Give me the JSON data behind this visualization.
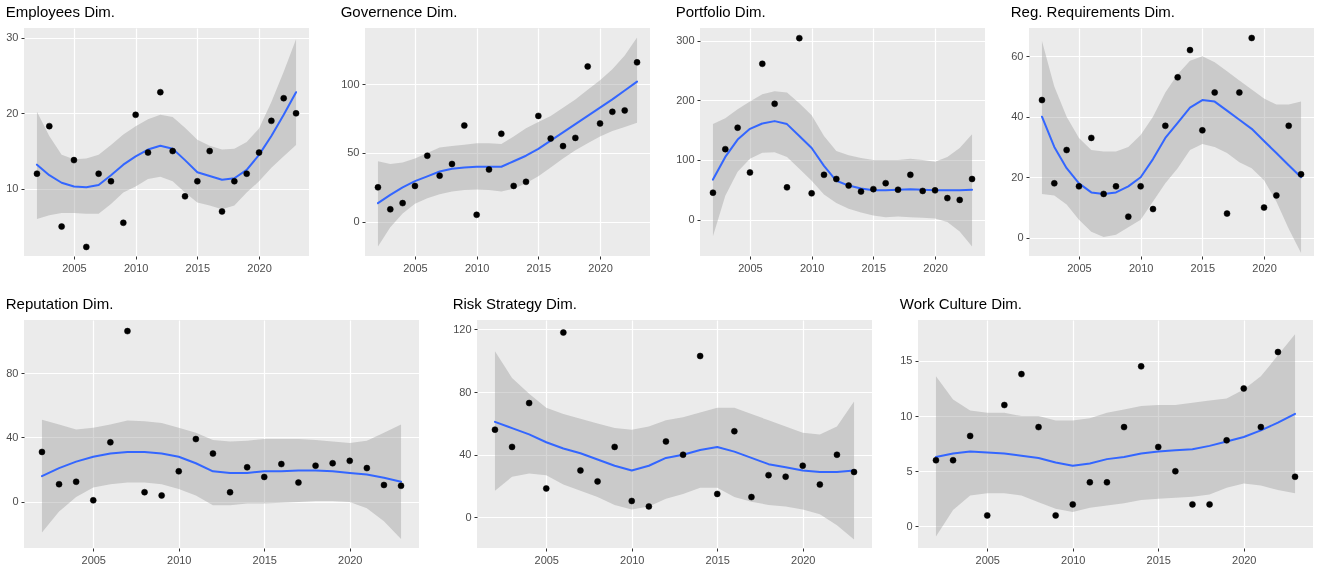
{
  "chart_data": [
    {
      "type": "scatter",
      "title": "Employees Dim.",
      "x": [
        2002,
        2003,
        2004,
        2005,
        2006,
        2007,
        2008,
        2009,
        2010,
        2011,
        2012,
        2013,
        2014,
        2015,
        2016,
        2017,
        2018,
        2019,
        2020,
        2021,
        2022,
        2023
      ],
      "xlim": [
        2000.95,
        2024.05
      ],
      "xticks": [
        2005,
        2010,
        2015,
        2020
      ],
      "ylim": [
        1.1,
        31.3
      ],
      "yticks": [
        10,
        20,
        30
      ],
      "grid": true,
      "marker": "circle",
      "series": [
        {
          "type": "scatter",
          "color": "#000000",
          "values": [
            12,
            18.3,
            5,
            13.8,
            2.3,
            12,
            11,
            5.5,
            19.8,
            14.8,
            22.8,
            15,
            9,
            11,
            15,
            7,
            11,
            12,
            14.8,
            19,
            22,
            20
          ]
        },
        {
          "type": "line",
          "color": "#3366ff",
          "marker": "none",
          "values": [
            13.2,
            11.8,
            10.8,
            10.3,
            10.2,
            10.5,
            11.8,
            13.2,
            14.3,
            15.2,
            15.7,
            15.3,
            13.8,
            12.2,
            11.7,
            11.2,
            11.4,
            12.5,
            14.5,
            17,
            19.8,
            22.8
          ],
          "lower": [
            6,
            6.5,
            6.8,
            6.8,
            6.7,
            6.7,
            8,
            9.5,
            10.3,
            11.3,
            11.6,
            11,
            9.5,
            8.2,
            7.8,
            7.3,
            7.8,
            9.5,
            11,
            12.8,
            14.3,
            15.8
          ],
          "upper": [
            20.2,
            17,
            14.5,
            13.9,
            14,
            14.5,
            15.8,
            17.2,
            18.3,
            19.2,
            19.8,
            19.5,
            18.1,
            16.5,
            15.7,
            15.2,
            15.3,
            16.2,
            18,
            21.5,
            25.5,
            29.8
          ]
        }
      ]
    },
    {
      "type": "scatter",
      "title": "Governence Dim.",
      "x": [
        2002,
        2003,
        2004,
        2005,
        2006,
        2007,
        2008,
        2009,
        2010,
        2011,
        2012,
        2013,
        2014,
        2015,
        2016,
        2017,
        2018,
        2019,
        2020,
        2021,
        2022,
        2023
      ],
      "xlim": [
        2000.95,
        2024.05
      ],
      "xticks": [
        2005,
        2010,
        2015,
        2020
      ],
      "ylim": [
        -25,
        141
      ],
      "yticks": [
        0,
        50,
        100
      ],
      "grid": true,
      "marker": "circle",
      "series": [
        {
          "type": "scatter",
          "color": "#000000",
          "values": [
            25,
            9,
            13.5,
            26,
            48,
            33.5,
            42,
            70,
            5,
            38,
            64,
            26,
            29,
            77,
            60.5,
            55,
            61,
            113,
            71.5,
            80,
            81,
            116
          ]
        },
        {
          "type": "line",
          "color": "#3366ff",
          "marker": "none",
          "values": [
            13.5,
            19.5,
            25,
            29.5,
            33,
            36.5,
            38.5,
            39.5,
            40,
            40,
            40,
            44,
            48,
            53,
            59,
            65,
            71,
            77,
            83,
            89,
            95.5,
            102
          ],
          "lower": [
            -18,
            -4,
            6,
            13,
            17,
            20,
            22,
            23,
            23.5,
            23,
            22,
            24,
            28,
            33,
            39.5,
            46,
            52,
            57,
            62,
            66,
            69,
            72
          ],
          "upper": [
            44,
            42,
            43,
            46,
            50,
            54,
            55,
            56,
            57,
            57,
            56.5,
            62,
            68,
            72.5,
            77,
            83,
            89,
            96,
            103,
            111,
            121,
            134
          ]
        }
      ]
    },
    {
      "type": "scatter",
      "title": "Portfolio Dim.",
      "x": [
        2002,
        2003,
        2004,
        2005,
        2006,
        2007,
        2008,
        2009,
        2010,
        2011,
        2012,
        2013,
        2014,
        2015,
        2016,
        2017,
        2018,
        2019,
        2020,
        2021,
        2022,
        2023
      ],
      "xlim": [
        2000.95,
        2024.05
      ],
      "xticks": [
        2005,
        2010,
        2015,
        2020
      ],
      "ylim": [
        -61,
        321
      ],
      "yticks": [
        0,
        100,
        200,
        300
      ],
      "grid": true,
      "marker": "circle",
      "series": [
        {
          "type": "scatter",
          "color": "#000000",
          "values": [
            45,
            118,
            154,
            79,
            261,
            194,
            54,
            304,
            44,
            75,
            68,
            57,
            47,
            51,
            61,
            50,
            75,
            48,
            49,
            36,
            33,
            68
          ]
        },
        {
          "type": "line",
          "color": "#3366ff",
          "marker": "none",
          "values": [
            67,
            105,
            134,
            152,
            161,
            165,
            160,
            140,
            120,
            90,
            65,
            57,
            52,
            49,
            49,
            50,
            51,
            50,
            49,
            49,
            49,
            50
          ],
          "lower": [
            -28,
            40,
            80,
            102,
            112,
            113,
            105,
            85,
            65,
            42,
            28,
            18,
            12,
            7,
            4,
            5,
            4,
            3,
            2,
            -4,
            -20,
            -45
          ],
          "upper": [
            160,
            170,
            185,
            198,
            210,
            215,
            213,
            195,
            175,
            140,
            115,
            108,
            103,
            100,
            100,
            100,
            102,
            100,
            97,
            105,
            120,
            143
          ]
        }
      ]
    },
    {
      "type": "scatter",
      "title": "Reg. Requirements Dim.",
      "x": [
        2002,
        2003,
        2004,
        2005,
        2006,
        2007,
        2008,
        2009,
        2010,
        2011,
        2012,
        2013,
        2014,
        2015,
        2016,
        2017,
        2018,
        2019,
        2020,
        2021,
        2022,
        2023
      ],
      "xlim": [
        2000.95,
        2024.05
      ],
      "xticks": [
        2005,
        2010,
        2015,
        2020
      ],
      "ylim": [
        -6,
        69.3
      ],
      "yticks": [
        0,
        20,
        40,
        60
      ],
      "grid": true,
      "marker": "circle",
      "series": [
        {
          "type": "scatter",
          "color": "#000000",
          "values": [
            45.5,
            18,
            29,
            17,
            33,
            14.5,
            17,
            7,
            17,
            9.5,
            37,
            53,
            62,
            35.5,
            48,
            8,
            48,
            66,
            10,
            14,
            37,
            21
          ]
        },
        {
          "type": "line",
          "color": "#3366ff",
          "marker": "none",
          "values": [
            40,
            30,
            23,
            18,
            15,
            14.5,
            15,
            17,
            20,
            26,
            33,
            38,
            43,
            45.5,
            45,
            42,
            39,
            36,
            32,
            28,
            24,
            20
          ],
          "lower": [
            14.5,
            14,
            11,
            6,
            2,
            0.3,
            1,
            3.5,
            6,
            12,
            18,
            23,
            29,
            31,
            30,
            28,
            25,
            23,
            19,
            12,
            3,
            -5
          ],
          "upper": [
            65,
            50,
            40,
            33,
            29,
            28.5,
            28.5,
            30,
            34,
            40,
            48,
            54,
            58.5,
            60,
            58,
            55,
            52,
            49,
            46,
            44,
            44,
            45
          ]
        }
      ]
    },
    {
      "type": "scatter",
      "title": "Reputation Dim.",
      "x": [
        2002,
        2003,
        2004,
        2005,
        2006,
        2007,
        2008,
        2009,
        2010,
        2011,
        2012,
        2013,
        2014,
        2015,
        2016,
        2017,
        2018,
        2019,
        2020,
        2021,
        2022,
        2023
      ],
      "xlim": [
        2000.95,
        2024.05
      ],
      "xticks": [
        2005,
        2010,
        2015,
        2020
      ],
      "ylim": [
        -28.6,
        112.9
      ],
      "yticks": [
        0,
        40,
        80
      ],
      "grid": true,
      "marker": "circle",
      "series": [
        {
          "type": "scatter",
          "color": "#000000",
          "values": [
            31,
            11,
            12.5,
            1,
            37,
            106,
            6,
            4,
            19,
            39,
            30,
            6,
            21.5,
            15.5,
            23.5,
            12,
            22.5,
            24,
            25.5,
            21,
            10.5,
            10
          ]
        },
        {
          "type": "line",
          "color": "#3366ff",
          "marker": "none",
          "values": [
            16,
            21,
            25,
            28,
            30,
            31,
            31,
            30,
            28,
            24,
            19,
            18,
            18,
            19,
            19,
            19.5,
            19.5,
            19,
            18,
            17,
            15,
            12.5
          ],
          "lower": [
            -19,
            -6,
            3,
            9,
            11,
            12,
            12,
            11,
            8,
            4,
            -2,
            -2,
            -1,
            -1,
            -0.5,
            0,
            0.5,
            0.5,
            0,
            -4,
            -12,
            -23
          ],
          "upper": [
            51,
            48,
            45,
            46,
            48,
            50.5,
            50,
            49,
            46,
            43,
            38.5,
            37.5,
            38,
            39,
            39,
            39,
            38.5,
            37.5,
            36.5,
            38,
            43,
            48
          ]
        }
      ]
    },
    {
      "type": "scatter",
      "title": "Risk Strategy Dim.",
      "x": [
        2002,
        2003,
        2004,
        2005,
        2006,
        2007,
        2008,
        2009,
        2010,
        2011,
        2012,
        2013,
        2014,
        2015,
        2016,
        2017,
        2018,
        2019,
        2020,
        2021,
        2022,
        2023
      ],
      "xlim": [
        2000.95,
        2024.05
      ],
      "xticks": [
        2005,
        2010,
        2015,
        2020
      ],
      "ylim": [
        -19.5,
        126
      ],
      "yticks": [
        0,
        40,
        80,
        120
      ],
      "grid": true,
      "marker": "circle",
      "series": [
        {
          "type": "scatter",
          "color": "#000000",
          "values": [
            56,
            45,
            73,
            18.5,
            118,
            30,
            23,
            45,
            10.5,
            7,
            48.5,
            40,
            103,
            15,
            55,
            13,
            27,
            26,
            33,
            21,
            40,
            29
          ]
        },
        {
          "type": "line",
          "color": "#3366ff",
          "marker": "none",
          "values": [
            61,
            57,
            53,
            48,
            44,
            41,
            37,
            33,
            30,
            33,
            38,
            40,
            43,
            45,
            42,
            38,
            34,
            32,
            30,
            29,
            29,
            30
          ],
          "lower": [
            17,
            26,
            28,
            27,
            21,
            17,
            13,
            8,
            5,
            7,
            12,
            15,
            19,
            19,
            13,
            10,
            8,
            7,
            5,
            2,
            -5,
            -14
          ],
          "upper": [
            106,
            89,
            79,
            70,
            66,
            63,
            60,
            57,
            56,
            58,
            62,
            64,
            67,
            70,
            70,
            66,
            62,
            58,
            54,
            53,
            58,
            74
          ]
        }
      ]
    },
    {
      "type": "scatter",
      "title": "Work Culture Dim.",
      "x": [
        2002,
        2003,
        2004,
        2005,
        2006,
        2007,
        2008,
        2009,
        2010,
        2011,
        2012,
        2013,
        2014,
        2015,
        2016,
        2017,
        2018,
        2019,
        2020,
        2021,
        2022,
        2023
      ],
      "xlim": [
        2000.95,
        2024.05
      ],
      "xticks": [
        2005,
        2010,
        2015,
        2020
      ],
      "ylim": [
        -1.95,
        18.7
      ],
      "yticks": [
        0,
        5,
        10,
        15
      ],
      "grid": true,
      "marker": "circle",
      "series": [
        {
          "type": "scatter",
          "color": "#000000",
          "values": [
            6,
            6,
            8.2,
            1,
            11,
            13.8,
            9,
            1,
            2,
            4,
            4,
            9,
            14.5,
            7.2,
            5,
            2,
            2,
            7.8,
            12.5,
            9,
            15.8,
            4.5
          ]
        },
        {
          "type": "line",
          "color": "#3366ff",
          "marker": "none",
          "values": [
            6.3,
            6.6,
            6.8,
            6.7,
            6.6,
            6.4,
            6.2,
            5.8,
            5.5,
            5.7,
            6.1,
            6.3,
            6.6,
            6.8,
            6.9,
            7.0,
            7.3,
            7.7,
            8.1,
            8.7,
            9.4,
            10.2
          ],
          "lower": [
            -0.9,
            1.5,
            2.8,
            3,
            3,
            2.8,
            2.2,
            1.6,
            1.3,
            1.7,
            1.9,
            2.1,
            2.4,
            2.5,
            2.6,
            2.7,
            2.9,
            3.5,
            3.9,
            3.7,
            3.3,
            3
          ],
          "upper": [
            13.6,
            11.5,
            10.5,
            10.3,
            10.3,
            10,
            10,
            9.6,
            9.6,
            9.8,
            10.3,
            10.6,
            10.9,
            11,
            11,
            11.2,
            11.4,
            11.6,
            12.4,
            13.6,
            15.5,
            17.4
          ]
        }
      ]
    }
  ]
}
